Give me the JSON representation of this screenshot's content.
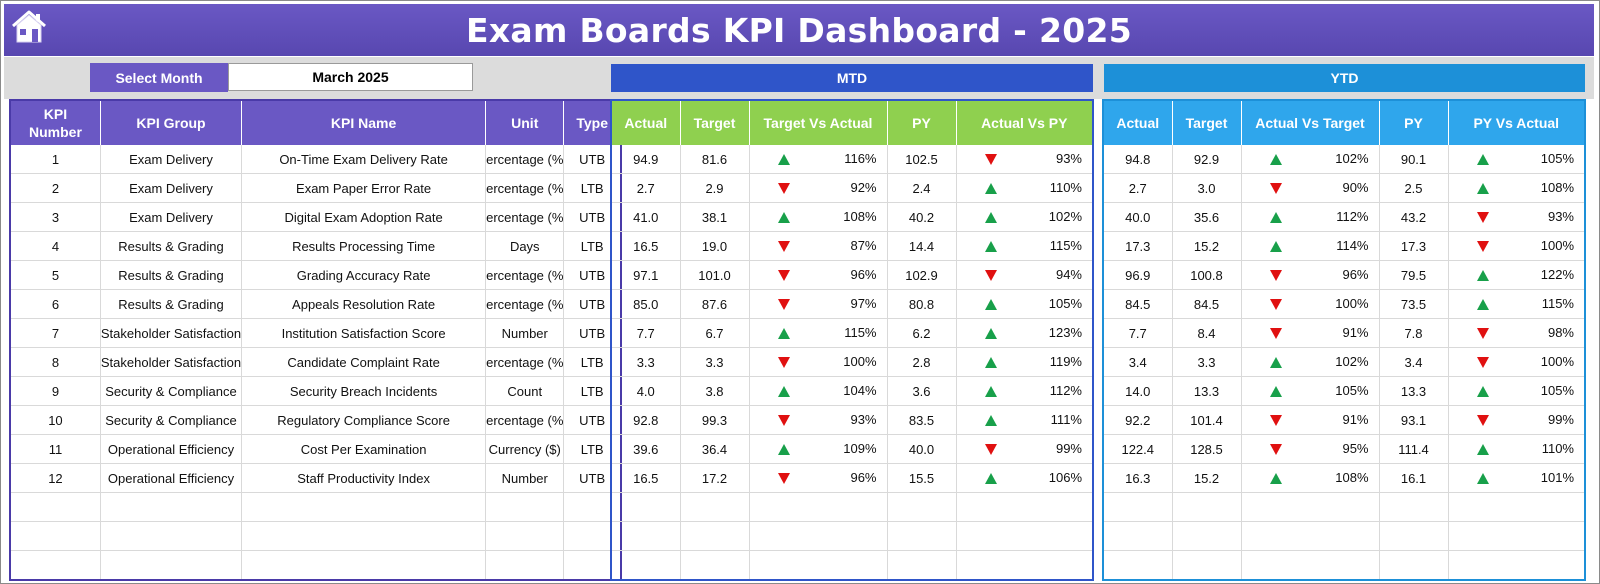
{
  "title": "Exam Boards KPI Dashboard - 2025",
  "home_icon": "home-icon",
  "month_selector": {
    "label": "Select Month",
    "value": "March 2025"
  },
  "sections": {
    "mtd": "MTD",
    "ytd": "YTD"
  },
  "colors": {
    "title_bg": "#5e4db8",
    "kpi_header": "#6a58c4",
    "mtd_bar": "#2f55c9",
    "mtd_header": "#8fd04f",
    "ytd_bar": "#1d90d8",
    "ytd_header": "#2fa6ec",
    "up": "#18a04a",
    "down": "#e01010"
  },
  "kpi_headers": [
    "KPI Number",
    "KPI Group",
    "KPI Name",
    "Unit",
    "Type"
  ],
  "mtd_headers": [
    "Actual",
    "Target",
    "Target Vs Actual",
    "PY",
    "Actual Vs PY"
  ],
  "ytd_headers": [
    "Actual",
    "Target",
    "Actual Vs Target",
    "PY",
    "PY Vs Actual"
  ],
  "rows": [
    {
      "num": "1",
      "group": "Exam Delivery",
      "name": "On-Time Exam Delivery Rate",
      "unit": "ercentage (%",
      "type": "UTB",
      "mtd": {
        "actual": "94.9",
        "target": "81.6",
        "tva_dir": "up",
        "tva": "116%",
        "py": "102.5",
        "avp_dir": "down",
        "avp": "93%"
      },
      "ytd": {
        "actual": "94.8",
        "target": "92.9",
        "avt_dir": "up",
        "avt": "102%",
        "py": "90.1",
        "pva_dir": "up",
        "pva": "105%"
      }
    },
    {
      "num": "2",
      "group": "Exam Delivery",
      "name": "Exam Paper Error Rate",
      "unit": "ercentage (%",
      "type": "LTB",
      "mtd": {
        "actual": "2.7",
        "target": "2.9",
        "tva_dir": "down",
        "tva": "92%",
        "py": "2.4",
        "avp_dir": "up",
        "avp": "110%"
      },
      "ytd": {
        "actual": "2.7",
        "target": "3.0",
        "avt_dir": "down",
        "avt": "90%",
        "py": "2.5",
        "pva_dir": "up",
        "pva": "108%"
      }
    },
    {
      "num": "3",
      "group": "Exam Delivery",
      "name": "Digital Exam Adoption Rate",
      "unit": "ercentage (%",
      "type": "UTB",
      "mtd": {
        "actual": "41.0",
        "target": "38.1",
        "tva_dir": "up",
        "tva": "108%",
        "py": "40.2",
        "avp_dir": "up",
        "avp": "102%"
      },
      "ytd": {
        "actual": "40.0",
        "target": "35.6",
        "avt_dir": "up",
        "avt": "112%",
        "py": "43.2",
        "pva_dir": "down",
        "pva": "93%"
      }
    },
    {
      "num": "4",
      "group": "Results & Grading",
      "name": "Results Processing Time",
      "unit": "Days",
      "type": "LTB",
      "mtd": {
        "actual": "16.5",
        "target": "19.0",
        "tva_dir": "down",
        "tva": "87%",
        "py": "14.4",
        "avp_dir": "up",
        "avp": "115%"
      },
      "ytd": {
        "actual": "17.3",
        "target": "15.2",
        "avt_dir": "up",
        "avt": "114%",
        "py": "17.3",
        "pva_dir": "down",
        "pva": "100%"
      }
    },
    {
      "num": "5",
      "group": "Results & Grading",
      "name": "Grading Accuracy Rate",
      "unit": "ercentage (%",
      "type": "UTB",
      "mtd": {
        "actual": "97.1",
        "target": "101.0",
        "tva_dir": "down",
        "tva": "96%",
        "py": "102.9",
        "avp_dir": "down",
        "avp": "94%"
      },
      "ytd": {
        "actual": "96.9",
        "target": "100.8",
        "avt_dir": "down",
        "avt": "96%",
        "py": "79.5",
        "pva_dir": "up",
        "pva": "122%"
      }
    },
    {
      "num": "6",
      "group": "Results & Grading",
      "name": "Appeals Resolution Rate",
      "unit": "ercentage (%",
      "type": "UTB",
      "mtd": {
        "actual": "85.0",
        "target": "87.6",
        "tva_dir": "down",
        "tva": "97%",
        "py": "80.8",
        "avp_dir": "up",
        "avp": "105%"
      },
      "ytd": {
        "actual": "84.5",
        "target": "84.5",
        "avt_dir": "down",
        "avt": "100%",
        "py": "73.5",
        "pva_dir": "up",
        "pva": "115%"
      }
    },
    {
      "num": "7",
      "group": "Stakeholder Satisfaction",
      "name": "Institution Satisfaction Score",
      "unit": "Number",
      "type": "UTB",
      "mtd": {
        "actual": "7.7",
        "target": "6.7",
        "tva_dir": "up",
        "tva": "115%",
        "py": "6.2",
        "avp_dir": "up",
        "avp": "123%"
      },
      "ytd": {
        "actual": "7.7",
        "target": "8.4",
        "avt_dir": "down",
        "avt": "91%",
        "py": "7.8",
        "pva_dir": "down",
        "pva": "98%"
      }
    },
    {
      "num": "8",
      "group": "Stakeholder Satisfaction",
      "name": "Candidate Complaint Rate",
      "unit": "ercentage (%",
      "type": "LTB",
      "mtd": {
        "actual": "3.3",
        "target": "3.3",
        "tva_dir": "down",
        "tva": "100%",
        "py": "2.8",
        "avp_dir": "up",
        "avp": "119%"
      },
      "ytd": {
        "actual": "3.4",
        "target": "3.3",
        "avt_dir": "up",
        "avt": "102%",
        "py": "3.4",
        "pva_dir": "down",
        "pva": "100%"
      }
    },
    {
      "num": "9",
      "group": "Security & Compliance",
      "name": "Security Breach Incidents",
      "unit": "Count",
      "type": "LTB",
      "mtd": {
        "actual": "4.0",
        "target": "3.8",
        "tva_dir": "up",
        "tva": "104%",
        "py": "3.6",
        "avp_dir": "up",
        "avp": "112%"
      },
      "ytd": {
        "actual": "14.0",
        "target": "13.3",
        "avt_dir": "up",
        "avt": "105%",
        "py": "13.3",
        "pva_dir": "up",
        "pva": "105%"
      }
    },
    {
      "num": "10",
      "group": "Security & Compliance",
      "name": "Regulatory Compliance Score",
      "unit": "ercentage (%",
      "type": "UTB",
      "mtd": {
        "actual": "92.8",
        "target": "99.3",
        "tva_dir": "down",
        "tva": "93%",
        "py": "83.5",
        "avp_dir": "up",
        "avp": "111%"
      },
      "ytd": {
        "actual": "92.2",
        "target": "101.4",
        "avt_dir": "down",
        "avt": "91%",
        "py": "93.1",
        "pva_dir": "down",
        "pva": "99%"
      }
    },
    {
      "num": "11",
      "group": "Operational Efficiency",
      "name": "Cost Per Examination",
      "unit": "Currency ($)",
      "type": "LTB",
      "mtd": {
        "actual": "39.6",
        "target": "36.4",
        "tva_dir": "up",
        "tva": "109%",
        "py": "40.0",
        "avp_dir": "down",
        "avp": "99%"
      },
      "ytd": {
        "actual": "122.4",
        "target": "128.5",
        "avt_dir": "down",
        "avt": "95%",
        "py": "111.4",
        "pva_dir": "up",
        "pva": "110%"
      }
    },
    {
      "num": "12",
      "group": "Operational Efficiency",
      "name": "Staff Productivity Index",
      "unit": "Number",
      "type": "UTB",
      "mtd": {
        "actual": "16.5",
        "target": "17.2",
        "tva_dir": "down",
        "tva": "96%",
        "py": "15.5",
        "avp_dir": "up",
        "avp": "106%"
      },
      "ytd": {
        "actual": "16.3",
        "target": "15.2",
        "avt_dir": "up",
        "avt": "108%",
        "py": "16.1",
        "pva_dir": "up",
        "pva": "101%"
      }
    }
  ]
}
